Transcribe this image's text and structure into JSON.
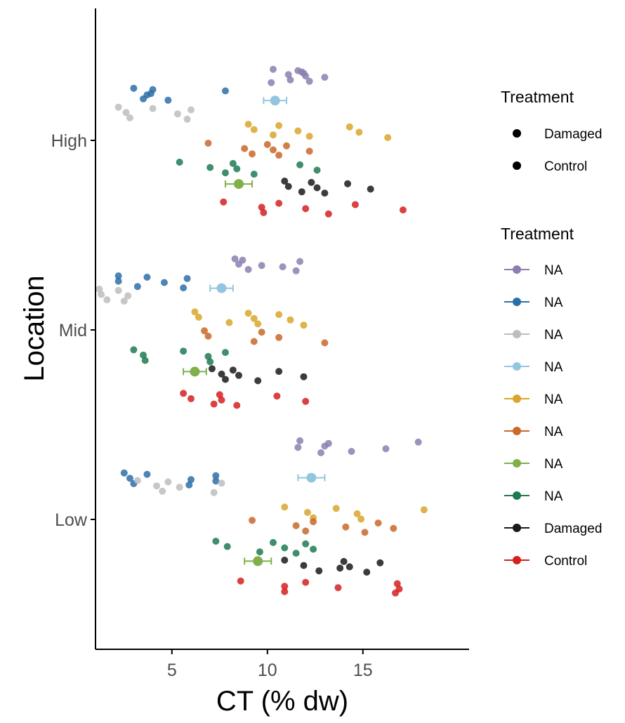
{
  "chart_data": {
    "type": "scatter",
    "xlabel": "CT (% dw)",
    "ylabel": "Location",
    "categories": [
      "High",
      "Mid",
      "Low"
    ],
    "xlim": [
      1,
      19
    ],
    "xticks": [
      5,
      10,
      15
    ],
    "grid": false,
    "legend_position": "right",
    "legend1": {
      "title": "Treatment",
      "items": [
        {
          "label": "Damaged",
          "color": "#000000"
        },
        {
          "label": "Control",
          "color": "#000000"
        }
      ]
    },
    "legend2": {
      "title": "Treatment",
      "items": [
        {
          "label": "NA",
          "color": "#8c7fb0"
        },
        {
          "label": "NA",
          "color": "#2b6fa8"
        },
        {
          "label": "NA",
          "color": "#bdbdbd"
        },
        {
          "label": "NA",
          "color": "#92c6df"
        },
        {
          "label": "NA",
          "color": "#d9a62b"
        },
        {
          "label": "NA",
          "color": "#c9692a"
        },
        {
          "label": "NA",
          "color": "#7fb04a"
        },
        {
          "label": "NA",
          "color": "#1f7a52"
        },
        {
          "label": "Damaged",
          "color": "#1a1a1a"
        },
        {
          "label": "Control",
          "color": "#d62020"
        }
      ]
    },
    "series": [
      {
        "color": "#8c7fb0",
        "points": [
          {
            "loc": "High",
            "off": 0.34,
            "x": [
              10.3,
              11.1,
              11.2,
              11.6,
              12.0,
              12.2,
              11.8,
              13.0,
              10.2,
              11.9
            ]
          },
          {
            "loc": "Mid",
            "off": 0.34,
            "x": [
              8.3,
              8.5,
              9.0,
              8.7,
              9.7,
              11.5,
              11.7,
              10.8
            ]
          },
          {
            "loc": "Low",
            "off": 0.38,
            "x": [
              11.7,
              13.0,
              14.4,
              17.9,
              11.6,
              12.8,
              13.2,
              16.2
            ]
          }
        ]
      },
      {
        "color": "#2b6fa8",
        "points": [
          {
            "loc": "High",
            "off": 0.24,
            "x": [
              3.0,
              3.9,
              3.5,
              4.0,
              3.7,
              4.8,
              7.8
            ]
          },
          {
            "loc": "Mid",
            "off": 0.25,
            "x": [
              2.2,
              2.2,
              3.2,
              3.7,
              4.6,
              5.6,
              5.8
            ]
          },
          {
            "loc": "Low",
            "off": 0.21,
            "x": [
              2.5,
              2.8,
              3.0,
              3.7,
              6.0,
              5.9,
              7.3,
              7.3
            ]
          }
        ]
      },
      {
        "color": "#bdbdbd",
        "points": [
          {
            "loc": "High",
            "off": 0.14,
            "x": [
              2.2,
              2.6,
              2.8,
              4.0,
              5.3,
              5.8,
              6.0
            ]
          },
          {
            "loc": "Mid",
            "off": 0.18,
            "x": [
              1.2,
              1.3,
              1.6,
              2.2,
              2.7,
              2.5
            ]
          },
          {
            "loc": "Low",
            "off": 0.17,
            "x": [
              3.2,
              4.2,
              4.5,
              4.8,
              5.4,
              7.2,
              7.6
            ]
          }
        ]
      },
      {
        "color": "#92c6df",
        "mean": true,
        "points": [
          {
            "loc": "High",
            "off": 0.21,
            "x": [
              10.4
            ],
            "err": 0.6
          },
          {
            "loc": "Mid",
            "off": 0.22,
            "x": [
              7.6
            ],
            "err": 0.6
          },
          {
            "loc": "Low",
            "off": 0.22,
            "x": [
              12.3
            ],
            "err": 0.7
          }
        ]
      },
      {
        "color": "#d9a62b",
        "points": [
          {
            "loc": "High",
            "off": 0.05,
            "x": [
              9.0,
              9.3,
              10.3,
              10.6,
              11.6,
              12.2,
              14.3,
              14.8,
              16.3
            ]
          },
          {
            "loc": "Mid",
            "off": 0.06,
            "x": [
              6.2,
              6.4,
              8.0,
              9.0,
              9.3,
              9.5,
              10.6,
              11.2,
              11.9
            ]
          },
          {
            "loc": "Low",
            "off": 0.03,
            "x": [
              10.9,
              12.1,
              12.4,
              13.6,
              14.7,
              14.9,
              18.2
            ]
          }
        ]
      },
      {
        "color": "#c9692a",
        "points": [
          {
            "loc": "High",
            "off": -0.05,
            "x": [
              6.9,
              8.8,
              9.2,
              10.0,
              10.3,
              10.6,
              11.0,
              12.2
            ]
          },
          {
            "loc": "Mid",
            "off": -0.04,
            "x": [
              6.7,
              6.9,
              9.3,
              9.7,
              10.6,
              13.0
            ]
          },
          {
            "loc": "Low",
            "off": -0.04,
            "x": [
              9.2,
              11.5,
              12.0,
              12.4,
              14.1,
              15.1,
              15.8,
              16.6
            ]
          }
        ]
      },
      {
        "color": "#7fb04a",
        "mean": true,
        "points": [
          {
            "loc": "High",
            "off": -0.23,
            "x": [
              8.5
            ],
            "err": 0.7
          },
          {
            "loc": "Mid",
            "off": -0.22,
            "x": [
              6.2
            ],
            "err": 0.6
          },
          {
            "loc": "Low",
            "off": -0.22,
            "x": [
              9.5
            ],
            "err": 0.7
          }
        ]
      },
      {
        "color": "#1f7a52",
        "points": [
          {
            "loc": "High",
            "off": -0.15,
            "x": [
              5.4,
              7.0,
              7.8,
              8.2,
              8.4,
              9.3,
              11.7,
              12.6
            ]
          },
          {
            "loc": "Mid",
            "off": -0.14,
            "x": [
              3.0,
              3.5,
              3.6,
              5.6,
              6.9,
              7.0,
              7.8
            ]
          },
          {
            "loc": "Low",
            "off": -0.15,
            "x": [
              7.3,
              7.9,
              9.6,
              10.3,
              10.9,
              11.5,
              12.0,
              12.4
            ]
          }
        ]
      },
      {
        "color": "#1a1a1a",
        "points": [
          {
            "loc": "High",
            "off": -0.25,
            "x": [
              10.9,
              11.1,
              11.8,
              12.3,
              12.6,
              13.0,
              14.2,
              15.4
            ]
          },
          {
            "loc": "Mid",
            "off": -0.24,
            "x": [
              7.1,
              7.6,
              7.8,
              8.2,
              8.5,
              9.5,
              10.6,
              11.9
            ]
          },
          {
            "loc": "Low",
            "off": -0.25,
            "x": [
              10.9,
              11.9,
              12.7,
              14.0,
              14.3,
              15.2,
              15.9,
              13.8
            ]
          }
        ]
      },
      {
        "color": "#d62020",
        "points": [
          {
            "loc": "High",
            "off": -0.36,
            "x": [
              7.7,
              9.7,
              9.8,
              10.6,
              12.0,
              13.2,
              14.6,
              17.1
            ]
          },
          {
            "loc": "Mid",
            "off": -0.37,
            "x": [
              5.6,
              6.0,
              7.2,
              7.5,
              7.6,
              8.4,
              10.5,
              12.0
            ]
          },
          {
            "loc": "Low",
            "off": -0.36,
            "x": [
              8.6,
              10.9,
              10.9,
              12.0,
              13.7,
              16.7,
              16.8,
              16.9
            ]
          }
        ]
      }
    ]
  }
}
